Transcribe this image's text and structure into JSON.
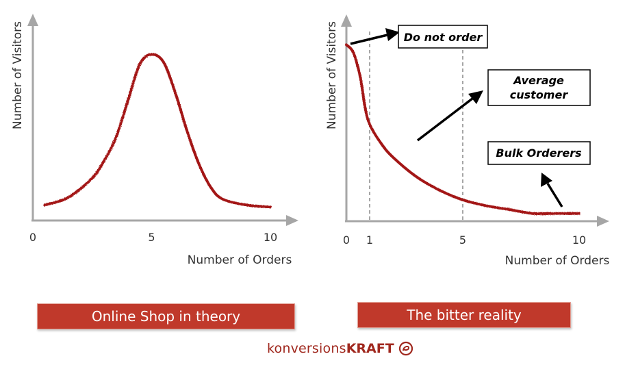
{
  "colors": {
    "axis": "#a6a6a6",
    "curve": "#a31515",
    "banner": "#c0392b",
    "banner_border": "#e3a095",
    "brand": "#a0281e",
    "guide": "#a6a6a6",
    "annotation_arrow": "#000000"
  },
  "chart_data": [
    {
      "type": "line",
      "shape": "bell",
      "ylabel": "Number of Visitors",
      "xlabel": "Number of Orders",
      "xlim": [
        0,
        10
      ],
      "x_ticks": [
        "0",
        "5",
        "10"
      ],
      "x_tick_values": [
        0,
        5,
        10
      ],
      "grid": false,
      "series": [
        {
          "x": [
            0.5,
            1.5,
            2.5,
            3.0,
            3.5,
            4.0,
            4.5,
            5.0,
            5.5,
            6.0,
            6.5,
            7.0,
            7.5,
            8.0,
            9.0,
            10.0
          ],
          "y": [
            0.08,
            0.12,
            0.22,
            0.31,
            0.43,
            0.62,
            0.81,
            0.86,
            0.82,
            0.66,
            0.46,
            0.29,
            0.17,
            0.11,
            0.08,
            0.07
          ]
        }
      ],
      "caption": "Online Shop in theory"
    },
    {
      "type": "line",
      "shape": "decay",
      "ylabel": "Number of Visitors",
      "xlabel": "Number of Orders",
      "xlim": [
        0,
        10
      ],
      "x_ticks": [
        "0",
        "1",
        "5",
        "10"
      ],
      "x_tick_values": [
        0,
        1,
        5,
        10
      ],
      "guide_lines": [
        1,
        5
      ],
      "grid": false,
      "series": [
        {
          "x": [
            0,
            0.3,
            0.6,
            0.8,
            1.0,
            1.5,
            2.0,
            3.0,
            4.0,
            5.0,
            6.0,
            7.0,
            8.0,
            9.0,
            10.0
          ],
          "y": [
            0.91,
            0.87,
            0.74,
            0.59,
            0.5,
            0.4,
            0.33,
            0.23,
            0.16,
            0.11,
            0.08,
            0.06,
            0.04,
            0.04,
            0.04
          ]
        }
      ],
      "annotations": [
        {
          "text": "Do not order",
          "target": [
            0.0,
            0.91
          ]
        },
        {
          "text": "Average customer",
          "lines": [
            "Average",
            "customer"
          ],
          "target": [
            3.0,
            0.4
          ]
        },
        {
          "text": "Bulk Orderers",
          "target": [
            9.2,
            0.05
          ]
        }
      ],
      "caption": "The bitter reality"
    }
  ],
  "brand": {
    "part1": "konversions",
    "part2": "KRAFT"
  }
}
